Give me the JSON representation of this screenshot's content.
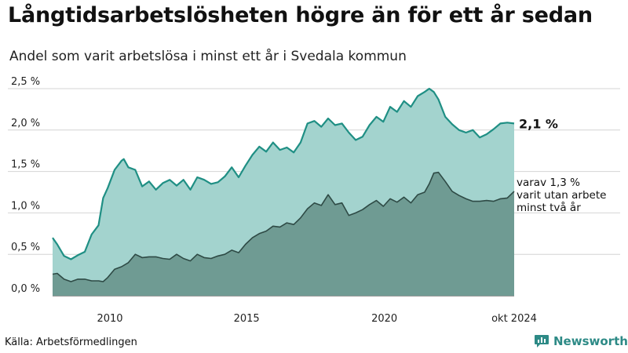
{
  "header": {
    "title": "Långtidsarbetslösheten högre än för ett år sedan",
    "subtitle": "Andel som varit arbetslösa i minst ett år i Svedala kommun"
  },
  "footer": {
    "source": "Källa: Arbetsförmedlingen",
    "brand": "Newsworthy"
  },
  "colors": {
    "total_fill": "#a3d3ce",
    "total_line": "#1f8f84",
    "long_fill": "#6f9b93",
    "long_line": "#2e4a45",
    "brand": "#2d8a86"
  },
  "chart_data": {
    "type": "area",
    "x_unit": "month",
    "ylim": [
      0,
      2.5
    ],
    "y_ticks": [
      0,
      0.5,
      1.0,
      1.5,
      2.0,
      2.5
    ],
    "y_tick_labels": [
      "0,0 %",
      "0,5 %",
      "1,0 %",
      "1,5 %",
      "2,0 %",
      "2,5 %"
    ],
    "x_ticks": [
      "2010",
      "2015",
      "2020",
      "okt 2024"
    ],
    "annotations": {
      "total_end": "2,1 %",
      "long_end": [
        "varav 1,3 %",
        "varit utan arbete",
        "minst två år"
      ]
    },
    "series": [
      {
        "key": "total",
        "points": [
          [
            "2008-01",
            0.7
          ],
          [
            "2008-03",
            0.62
          ],
          [
            "2008-06",
            0.48
          ],
          [
            "2008-09",
            0.44
          ],
          [
            "2008-12",
            0.49
          ],
          [
            "2009-03",
            0.53
          ],
          [
            "2009-06",
            0.74
          ],
          [
            "2009-09",
            0.85
          ],
          [
            "2009-11",
            1.18
          ],
          [
            "2010-01",
            1.3
          ],
          [
            "2010-04",
            1.52
          ],
          [
            "2010-07",
            1.63
          ],
          [
            "2010-08",
            1.65
          ],
          [
            "2010-10",
            1.55
          ],
          [
            "2011-01",
            1.52
          ],
          [
            "2011-04",
            1.32
          ],
          [
            "2011-07",
            1.38
          ],
          [
            "2011-10",
            1.28
          ],
          [
            "2012-01",
            1.36
          ],
          [
            "2012-04",
            1.4
          ],
          [
            "2012-07",
            1.33
          ],
          [
            "2012-10",
            1.4
          ],
          [
            "2013-01",
            1.28
          ],
          [
            "2013-04",
            1.43
          ],
          [
            "2013-07",
            1.4
          ],
          [
            "2013-10",
            1.35
          ],
          [
            "2014-01",
            1.37
          ],
          [
            "2014-04",
            1.44
          ],
          [
            "2014-07",
            1.55
          ],
          [
            "2014-10",
            1.43
          ],
          [
            "2015-01",
            1.57
          ],
          [
            "2015-04",
            1.7
          ],
          [
            "2015-07",
            1.8
          ],
          [
            "2015-10",
            1.74
          ],
          [
            "2016-01",
            1.85
          ],
          [
            "2016-04",
            1.76
          ],
          [
            "2016-07",
            1.79
          ],
          [
            "2016-10",
            1.73
          ],
          [
            "2017-01",
            1.85
          ],
          [
            "2017-04",
            2.08
          ],
          [
            "2017-07",
            2.11
          ],
          [
            "2017-10",
            2.04
          ],
          [
            "2018-01",
            2.14
          ],
          [
            "2018-04",
            2.06
          ],
          [
            "2018-07",
            2.08
          ],
          [
            "2018-10",
            1.97
          ],
          [
            "2019-01",
            1.88
          ],
          [
            "2019-04",
            1.92
          ],
          [
            "2019-07",
            2.06
          ],
          [
            "2019-10",
            2.16
          ],
          [
            "2020-01",
            2.1
          ],
          [
            "2020-04",
            2.28
          ],
          [
            "2020-07",
            2.22
          ],
          [
            "2020-10",
            2.35
          ],
          [
            "2021-01",
            2.28
          ],
          [
            "2021-04",
            2.41
          ],
          [
            "2021-07",
            2.46
          ],
          [
            "2021-09",
            2.5
          ],
          [
            "2021-11",
            2.46
          ],
          [
            "2022-01",
            2.37
          ],
          [
            "2022-04",
            2.16
          ],
          [
            "2022-07",
            2.07
          ],
          [
            "2022-10",
            2.0
          ],
          [
            "2023-01",
            1.97
          ],
          [
            "2023-04",
            2.0
          ],
          [
            "2023-07",
            1.91
          ],
          [
            "2023-10",
            1.95
          ],
          [
            "2024-01",
            2.01
          ],
          [
            "2024-04",
            2.08
          ],
          [
            "2024-07",
            2.09
          ],
          [
            "2024-10",
            2.08
          ]
        ]
      },
      {
        "key": "long",
        "points": [
          [
            "2008-01",
            0.26
          ],
          [
            "2008-03",
            0.27
          ],
          [
            "2008-06",
            0.2
          ],
          [
            "2008-09",
            0.17
          ],
          [
            "2008-12",
            0.2
          ],
          [
            "2009-03",
            0.2
          ],
          [
            "2009-06",
            0.18
          ],
          [
            "2009-09",
            0.18
          ],
          [
            "2009-11",
            0.17
          ],
          [
            "2010-01",
            0.22
          ],
          [
            "2010-04",
            0.32
          ],
          [
            "2010-07",
            0.35
          ],
          [
            "2010-10",
            0.4
          ],
          [
            "2011-01",
            0.5
          ],
          [
            "2011-04",
            0.46
          ],
          [
            "2011-07",
            0.47
          ],
          [
            "2011-10",
            0.47
          ],
          [
            "2012-01",
            0.45
          ],
          [
            "2012-04",
            0.44
          ],
          [
            "2012-07",
            0.5
          ],
          [
            "2012-10",
            0.45
          ],
          [
            "2013-01",
            0.42
          ],
          [
            "2013-04",
            0.5
          ],
          [
            "2013-07",
            0.46
          ],
          [
            "2013-10",
            0.45
          ],
          [
            "2014-01",
            0.48
          ],
          [
            "2014-04",
            0.5
          ],
          [
            "2014-07",
            0.55
          ],
          [
            "2014-10",
            0.52
          ],
          [
            "2015-01",
            0.62
          ],
          [
            "2015-04",
            0.7
          ],
          [
            "2015-07",
            0.75
          ],
          [
            "2015-10",
            0.78
          ],
          [
            "2016-01",
            0.84
          ],
          [
            "2016-04",
            0.83
          ],
          [
            "2016-07",
            0.88
          ],
          [
            "2016-10",
            0.86
          ],
          [
            "2017-01",
            0.94
          ],
          [
            "2017-04",
            1.05
          ],
          [
            "2017-07",
            1.12
          ],
          [
            "2017-10",
            1.09
          ],
          [
            "2018-01",
            1.22
          ],
          [
            "2018-04",
            1.1
          ],
          [
            "2018-07",
            1.12
          ],
          [
            "2018-10",
            0.97
          ],
          [
            "2019-01",
            1.0
          ],
          [
            "2019-04",
            1.04
          ],
          [
            "2019-07",
            1.1
          ],
          [
            "2019-10",
            1.15
          ],
          [
            "2020-01",
            1.08
          ],
          [
            "2020-04",
            1.17
          ],
          [
            "2020-07",
            1.13
          ],
          [
            "2020-10",
            1.19
          ],
          [
            "2021-01",
            1.12
          ],
          [
            "2021-04",
            1.22
          ],
          [
            "2021-07",
            1.25
          ],
          [
            "2021-09",
            1.35
          ],
          [
            "2021-11",
            1.48
          ],
          [
            "2022-01",
            1.49
          ],
          [
            "2022-04",
            1.38
          ],
          [
            "2022-07",
            1.26
          ],
          [
            "2022-10",
            1.21
          ],
          [
            "2023-01",
            1.17
          ],
          [
            "2023-04",
            1.14
          ],
          [
            "2023-07",
            1.14
          ],
          [
            "2023-10",
            1.15
          ],
          [
            "2024-01",
            1.14
          ],
          [
            "2024-04",
            1.17
          ],
          [
            "2024-07",
            1.18
          ],
          [
            "2024-10",
            1.26
          ]
        ]
      }
    ]
  }
}
